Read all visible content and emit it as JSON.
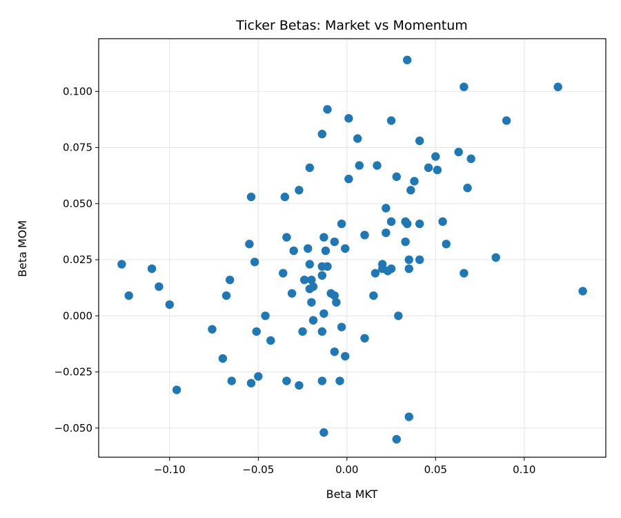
{
  "chart_data": {
    "type": "scatter",
    "title": "Ticker Betas: Market vs Momentum",
    "xlabel": "Beta MKT",
    "ylabel": "Beta MOM",
    "xlim": [
      -0.14,
      0.146
    ],
    "ylim": [
      -0.063,
      0.1235
    ],
    "grid": true,
    "marker_color": "#1f77b4",
    "x_ticks": [
      {
        "value": -0.1,
        "label": "−0.10"
      },
      {
        "value": -0.05,
        "label": "−0.05"
      },
      {
        "value": 0.0,
        "label": "0.00"
      },
      {
        "value": 0.05,
        "label": "0.05"
      },
      {
        "value": 0.1,
        "label": "0.10"
      }
    ],
    "y_ticks": [
      {
        "value": -0.05,
        "label": "−0.050"
      },
      {
        "value": -0.025,
        "label": "−0.025"
      },
      {
        "value": 0.0,
        "label": "0.000"
      },
      {
        "value": 0.025,
        "label": "0.025"
      },
      {
        "value": 0.05,
        "label": "0.050"
      },
      {
        "value": 0.075,
        "label": "0.075"
      },
      {
        "value": 0.1,
        "label": "0.100"
      }
    ],
    "points": [
      [
        0.034,
        0.114
      ],
      [
        0.066,
        0.102
      ],
      [
        0.119,
        0.102
      ],
      [
        -0.011,
        0.092
      ],
      [
        0.001,
        0.088
      ],
      [
        0.025,
        0.087
      ],
      [
        0.09,
        0.087
      ],
      [
        -0.014,
        0.081
      ],
      [
        0.006,
        0.079
      ],
      [
        0.041,
        0.078
      ],
      [
        0.063,
        0.073
      ],
      [
        0.05,
        0.071
      ],
      [
        0.07,
        0.07
      ],
      [
        0.007,
        0.067
      ],
      [
        0.017,
        0.067
      ],
      [
        0.046,
        0.066
      ],
      [
        0.051,
        0.065
      ],
      [
        -0.021,
        0.066
      ],
      [
        0.028,
        0.062
      ],
      [
        0.001,
        0.061
      ],
      [
        0.038,
        0.06
      ],
      [
        0.068,
        0.057
      ],
      [
        -0.027,
        0.056
      ],
      [
        0.036,
        0.056
      ],
      [
        -0.035,
        0.053
      ],
      [
        -0.054,
        0.053
      ],
      [
        0.022,
        0.048
      ],
      [
        0.054,
        0.042
      ],
      [
        0.033,
        0.042
      ],
      [
        0.025,
        0.042
      ],
      [
        0.041,
        0.041
      ],
      [
        -0.003,
        0.041
      ],
      [
        0.034,
        0.041
      ],
      [
        0.022,
        0.037
      ],
      [
        0.01,
        0.036
      ],
      [
        -0.034,
        0.035
      ],
      [
        -0.013,
        0.035
      ],
      [
        -0.007,
        0.033
      ],
      [
        0.033,
        0.033
      ],
      [
        0.056,
        0.032
      ],
      [
        -0.055,
        0.032
      ],
      [
        -0.03,
        0.029
      ],
      [
        -0.022,
        0.03
      ],
      [
        -0.012,
        0.029
      ],
      [
        -0.001,
        0.03
      ],
      [
        0.084,
        0.026
      ],
      [
        0.035,
        0.025
      ],
      [
        0.041,
        0.025
      ],
      [
        -0.052,
        0.024
      ],
      [
        -0.127,
        0.023
      ],
      [
        0.02,
        0.023
      ],
      [
        -0.021,
        0.023
      ],
      [
        -0.014,
        0.022
      ],
      [
        -0.011,
        0.022
      ],
      [
        0.02,
        0.021
      ],
      [
        0.025,
        0.021
      ],
      [
        -0.11,
        0.021
      ],
      [
        0.023,
        0.02
      ],
      [
        0.035,
        0.021
      ],
      [
        0.016,
        0.019
      ],
      [
        0.066,
        0.019
      ],
      [
        -0.014,
        0.018
      ],
      [
        -0.036,
        0.019
      ],
      [
        -0.066,
        0.016
      ],
      [
        -0.024,
        0.016
      ],
      [
        -0.02,
        0.016
      ],
      [
        -0.106,
        0.013
      ],
      [
        -0.019,
        0.013
      ],
      [
        -0.021,
        0.012
      ],
      [
        0.133,
        0.011
      ],
      [
        -0.031,
        0.01
      ],
      [
        -0.009,
        0.01
      ],
      [
        -0.007,
        0.009
      ],
      [
        -0.123,
        0.009
      ],
      [
        -0.068,
        0.009
      ],
      [
        0.015,
        0.009
      ],
      [
        -0.006,
        0.006
      ],
      [
        -0.02,
        0.006
      ],
      [
        -0.1,
        0.005
      ],
      [
        -0.046,
        0.0
      ],
      [
        -0.013,
        0.001
      ],
      [
        0.029,
        0.0
      ],
      [
        -0.019,
        -0.002
      ],
      [
        -0.003,
        -0.005
      ],
      [
        -0.076,
        -0.006
      ],
      [
        -0.051,
        -0.007
      ],
      [
        -0.025,
        -0.007
      ],
      [
        -0.014,
        -0.007
      ],
      [
        -0.043,
        -0.011
      ],
      [
        0.01,
        -0.01
      ],
      [
        -0.007,
        -0.016
      ],
      [
        -0.001,
        -0.018
      ],
      [
        -0.07,
        -0.019
      ],
      [
        -0.05,
        -0.027
      ],
      [
        -0.065,
        -0.029
      ],
      [
        -0.054,
        -0.03
      ],
      [
        -0.034,
        -0.029
      ],
      [
        -0.014,
        -0.029
      ],
      [
        -0.004,
        -0.029
      ],
      [
        -0.027,
        -0.031
      ],
      [
        -0.096,
        -0.033
      ],
      [
        0.035,
        -0.045
      ],
      [
        -0.013,
        -0.052
      ],
      [
        0.028,
        -0.055
      ]
    ]
  }
}
